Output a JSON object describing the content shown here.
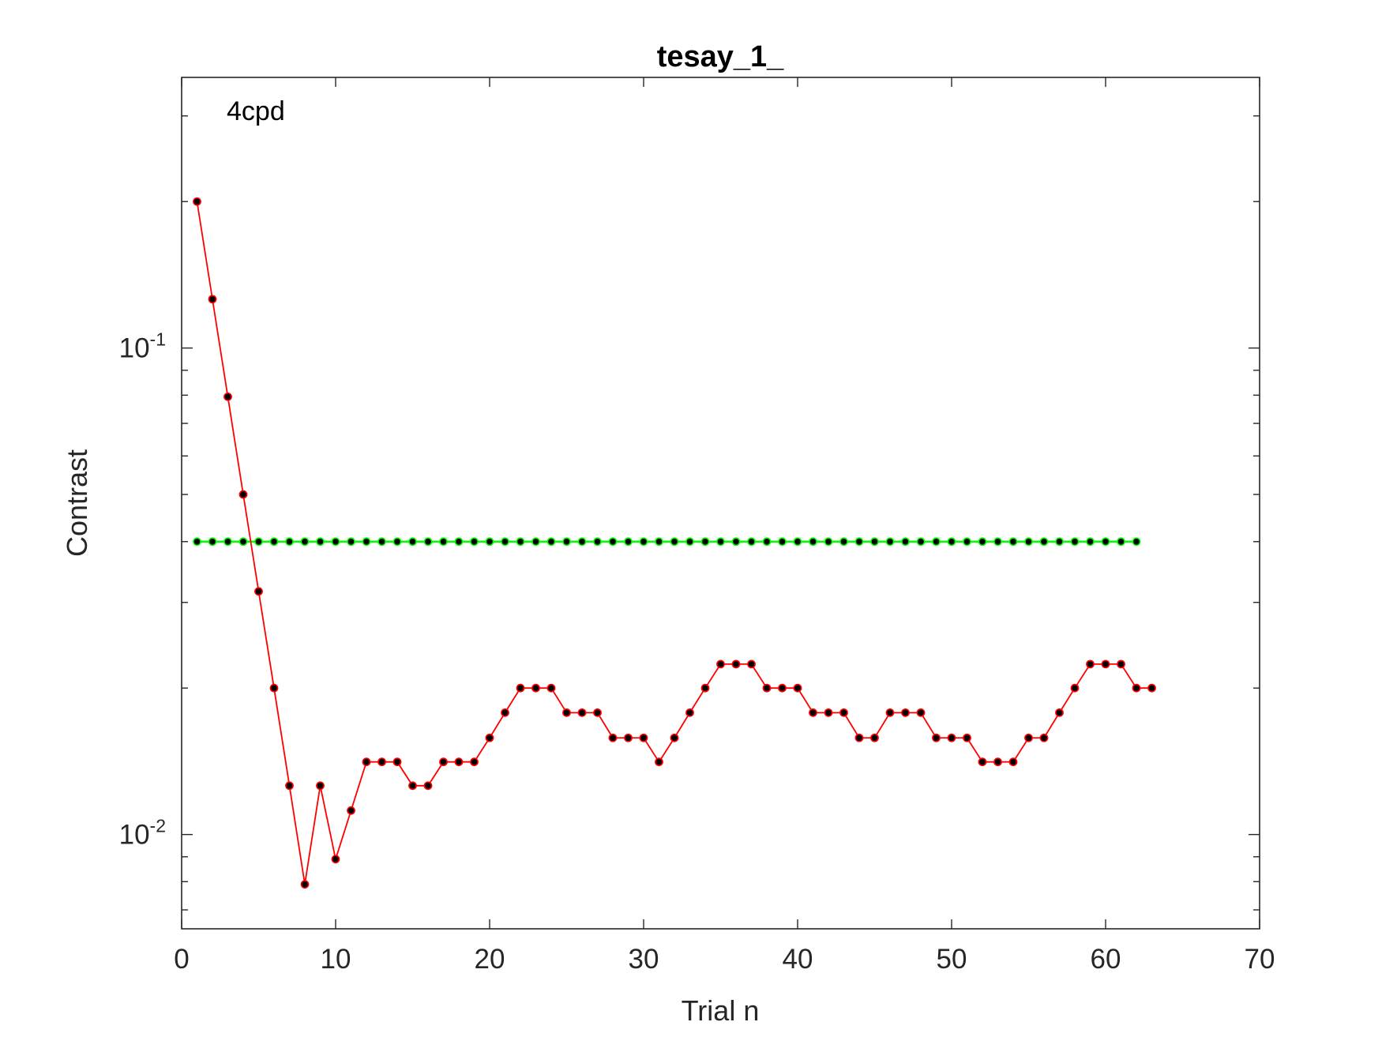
{
  "chart_data": {
    "type": "line",
    "title": "tesay_1_",
    "xlabel": "Trial n",
    "ylabel": "Contrast",
    "annotation": "4cpd",
    "xlim": [
      0,
      70
    ],
    "ylim": [
      0.0064,
      0.36
    ],
    "yscale": "log",
    "grid": false,
    "x_ticks": [
      "0",
      "10",
      "20",
      "30",
      "40",
      "50",
      "60",
      "70"
    ],
    "y_ticks": [
      {
        "value": 0.01,
        "base": "10",
        "exp": "-2"
      },
      {
        "value": 0.1,
        "base": "10",
        "exp": "-1"
      }
    ],
    "series": [
      {
        "color": "#ff0000",
        "marker_color": "#000000",
        "x": [
          1,
          2,
          3,
          4,
          5,
          6,
          7,
          8,
          9,
          10,
          11,
          12,
          13,
          14,
          15,
          16,
          17,
          18,
          19,
          20,
          21,
          22,
          23,
          24,
          25,
          26,
          27,
          28,
          29,
          30,
          31,
          32,
          33,
          34,
          35,
          36,
          37,
          38,
          39,
          40,
          41,
          42,
          43,
          44,
          45,
          46,
          47,
          48,
          49,
          50,
          51,
          52,
          53,
          54,
          55,
          56,
          57,
          58,
          59,
          60,
          61,
          62,
          63
        ],
        "y": [
          0.2,
          0.126,
          0.0794,
          0.05,
          0.0316,
          0.02,
          0.0126,
          0.0079,
          0.0126,
          0.0089,
          0.0112,
          0.0141,
          0.0141,
          0.0141,
          0.0126,
          0.0126,
          0.0141,
          0.0141,
          0.0141,
          0.0158,
          0.0178,
          0.02,
          0.02,
          0.02,
          0.0178,
          0.0178,
          0.0178,
          0.0158,
          0.0158,
          0.0158,
          0.0141,
          0.0158,
          0.0178,
          0.02,
          0.0224,
          0.0224,
          0.0224,
          0.02,
          0.02,
          0.02,
          0.0178,
          0.0178,
          0.0178,
          0.0158,
          0.0158,
          0.0178,
          0.0178,
          0.0178,
          0.0158,
          0.0158,
          0.0158,
          0.0141,
          0.0141,
          0.0141,
          0.0158,
          0.0158,
          0.0178,
          0.02,
          0.0224,
          0.0224,
          0.0224,
          0.02,
          0.02
        ]
      },
      {
        "color": "#00ff00",
        "marker_color": "#000000",
        "x": [
          1,
          2,
          3,
          4,
          5,
          6,
          7,
          8,
          9,
          10,
          11,
          12,
          13,
          14,
          15,
          16,
          17,
          18,
          19,
          20,
          21,
          22,
          23,
          24,
          25,
          26,
          27,
          28,
          29,
          30,
          31,
          32,
          33,
          34,
          35,
          36,
          37,
          38,
          39,
          40,
          41,
          42,
          43,
          44,
          45,
          46,
          47,
          48,
          49,
          50,
          51,
          52,
          53,
          54,
          55,
          56,
          57,
          58,
          59,
          60,
          61,
          62
        ],
        "y": [
          0.04,
          0.04,
          0.04,
          0.04,
          0.04,
          0.04,
          0.04,
          0.04,
          0.04,
          0.04,
          0.04,
          0.04,
          0.04,
          0.04,
          0.04,
          0.04,
          0.04,
          0.04,
          0.04,
          0.04,
          0.04,
          0.04,
          0.04,
          0.04,
          0.04,
          0.04,
          0.04,
          0.04,
          0.04,
          0.04,
          0.04,
          0.04,
          0.04,
          0.04,
          0.04,
          0.04,
          0.04,
          0.04,
          0.04,
          0.04,
          0.04,
          0.04,
          0.04,
          0.04,
          0.04,
          0.04,
          0.04,
          0.04,
          0.04,
          0.04,
          0.04,
          0.04,
          0.04,
          0.04,
          0.04,
          0.04,
          0.04,
          0.04,
          0.04,
          0.04,
          0.04,
          0.04
        ]
      }
    ]
  }
}
